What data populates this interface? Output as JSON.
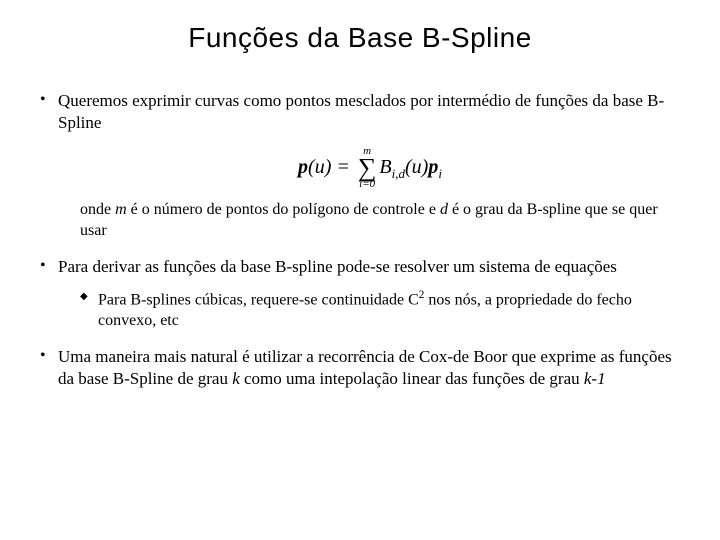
{
  "title": "Funções da Base B-Spline",
  "bullet1": "Queremos exprimir curvas como pontos mesclados por intermédio de funções da base B-Spline",
  "formula": {
    "lhs_p": "p",
    "lhs_arg": "(u)",
    "eq": " = ",
    "sum_top": "m",
    "sum_sigma": "∑",
    "sum_bot": "i=0",
    "B": "B",
    "B_sub": "i,d",
    "B_arg": "(u)",
    "p2": "p",
    "p2_sub": "i"
  },
  "onde_pre": "onde ",
  "onde_m": "m",
  "onde_mid": " é o número de pontos do polígono de controle e ",
  "onde_d": "d",
  "onde_post": " é o grau da B-spline que se quer usar",
  "bullet2": "Para derivar as funções da base B-spline pode-se resolver um sistema de equações",
  "sub1_pre": "Para B-splines cúbicas, requere-se continuidade C",
  "sub1_sup": "2",
  "sub1_post": " nos nós, a propriedade do fecho convexo, etc",
  "bullet3_pre": "Uma maneira mais natural é utilizar a recorrência de Cox-de Boor que exprime as funções da base B-Spline de grau ",
  "bullet3_k": "k",
  "bullet3_mid": " como uma intepolação linear das funções de grau ",
  "bullet3_k1": "k-1"
}
